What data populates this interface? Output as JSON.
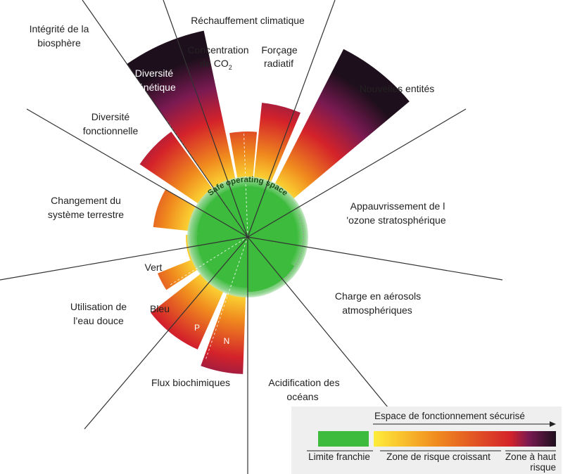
{
  "colors": {
    "safe": "#3dbb3d",
    "zone_start": "#ffed3a",
    "zone_mid": "#f08a1e",
    "zone_red": "#d4222a",
    "high_risk": "#7a1a52",
    "high_risk_end": "#1e0f1c",
    "divider": "#333333"
  },
  "center_label": "Safe operating space",
  "boundaries": {
    "climate_change": "Réchauffement climatique",
    "co2_prefix": "Concentration",
    "co2_de": "de CO",
    "co2_sub": "2",
    "radiative": [
      "Forçage",
      "radiatif"
    ],
    "novel_entities": "Nouvelles entités",
    "ozone": [
      "Appauvrissement de l",
      "'ozone stratosphérique"
    ],
    "aerosols": [
      "Charge en aérosols",
      "atmosphériques"
    ],
    "ocean": [
      "Acidification des",
      "océans"
    ],
    "biochemical": "Flux biochimiques",
    "p_label": "P",
    "n_label": "N",
    "freshwater": [
      "Utilisation de",
      "l’eau douce"
    ],
    "blue": "Bleu",
    "green": "Vert",
    "land": [
      "Changement du",
      "système terrestre"
    ],
    "functional": [
      "Diversité",
      "fonctionnelle"
    ],
    "biosphere": [
      "Intégrité de la",
      "biosphère"
    ],
    "genetic": [
      "Diversité",
      "génétique"
    ]
  },
  "legend": {
    "arrow_label": "Espace de fonctionnement sécurisé",
    "boundary": "Limite franchie",
    "increasing": "Zone de risque croissant",
    "high": [
      "Zone à haut",
      "risque"
    ]
  }
}
